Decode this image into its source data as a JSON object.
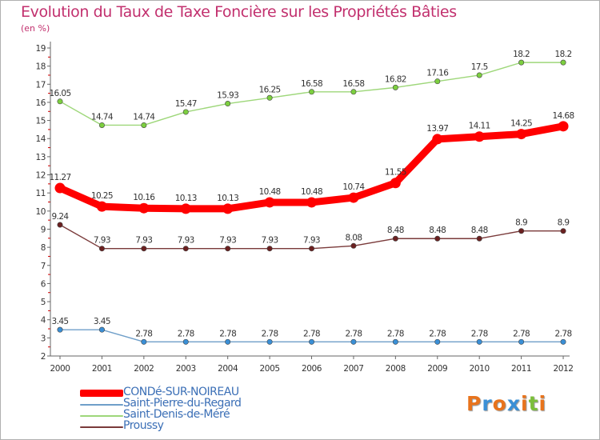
{
  "title": "Evolution du Taux de Taxe Foncière sur les Propriétés Bâties",
  "unit_label": "(en %)",
  "logo": {
    "text": "Proxiti",
    "letters": [
      {
        "ch": "P",
        "color": "#e8731c"
      },
      {
        "ch": "r",
        "color": "#3a8fd6"
      },
      {
        "ch": "o",
        "color": "#e8731c"
      },
      {
        "ch": "x",
        "color": "#3a8fd6"
      },
      {
        "ch": "i",
        "color": "#e8731c"
      },
      {
        "ch": "t",
        "color": "#7bbf3a"
      },
      {
        "ch": "i",
        "color": "#e8731c"
      }
    ]
  },
  "chart_data": {
    "type": "line",
    "title": "Evolution du Taux de Taxe Foncière sur les Propriétés Bâties",
    "ylabel": "(en %)",
    "xlabel": "",
    "x": [
      "2000",
      "2001",
      "2002",
      "2003",
      "2004",
      "2005",
      "2006",
      "2007",
      "2008",
      "2009",
      "2010",
      "2011",
      "2012"
    ],
    "ylim": [
      2,
      19
    ],
    "yticks": [
      "2",
      "3",
      "4",
      "5",
      "6",
      "7",
      "8",
      "9",
      "10",
      "11",
      "12",
      "13",
      "14",
      "15",
      "16",
      "17",
      "18",
      "19"
    ],
    "grid": false,
    "legend_position": "bottom-left",
    "series": [
      {
        "name": "CONDé-SUR-NOIREAU",
        "color": "#ff0000",
        "marker_color": "#ff0000",
        "emphasis": true,
        "values": [
          11.27,
          10.25,
          10.16,
          10.13,
          10.13,
          10.48,
          10.48,
          10.74,
          11.55,
          13.97,
          14.11,
          14.25,
          14.68
        ],
        "labels": [
          "11.27",
          "10.25",
          "10.16",
          "10.13",
          "10.13",
          "10.48",
          "10.48",
          "10.74",
          "11.55",
          "13.97",
          "14.11",
          "14.25",
          "14.68"
        ]
      },
      {
        "name": "Saint-Pierre-du-Regard",
        "color": "#6f9fc9",
        "marker_color": "#3a8fd6",
        "emphasis": false,
        "values": [
          3.45,
          3.45,
          2.78,
          2.78,
          2.78,
          2.78,
          2.78,
          2.78,
          2.78,
          2.78,
          2.78,
          2.78,
          2.78
        ],
        "labels": [
          "3.45",
          "3.45",
          "2.78",
          "2.78",
          "2.78",
          "2.78",
          "2.78",
          "2.78",
          "2.78",
          "2.78",
          "2.78",
          "2.78",
          "2.78"
        ]
      },
      {
        "name": "Saint-Denis-de-Méré",
        "color": "#9ed77a",
        "marker_color": "#7ccf3f",
        "emphasis": false,
        "values": [
          16.05,
          14.74,
          14.74,
          15.47,
          15.93,
          16.25,
          16.58,
          16.58,
          16.82,
          17.16,
          17.5,
          18.2,
          18.2
        ],
        "labels": [
          "16.05",
          "14.74",
          "14.74",
          "15.47",
          "15.93",
          "16.25",
          "16.58",
          "16.58",
          "16.82",
          "17.16",
          "17.5",
          "18.2",
          "18.2"
        ]
      },
      {
        "name": "Proussy",
        "color": "#7a3a3a",
        "marker_color": "#6b2020",
        "emphasis": false,
        "values": [
          9.24,
          7.93,
          7.93,
          7.93,
          7.93,
          7.93,
          7.93,
          8.08,
          8.48,
          8.48,
          8.48,
          8.9,
          8.9
        ],
        "labels": [
          "9.24",
          "7.93",
          "7.93",
          "7.93",
          "7.93",
          "7.93",
          "7.93",
          "8.08",
          "8.48",
          "8.48",
          "8.48",
          "8.9",
          "8.9"
        ]
      }
    ]
  }
}
